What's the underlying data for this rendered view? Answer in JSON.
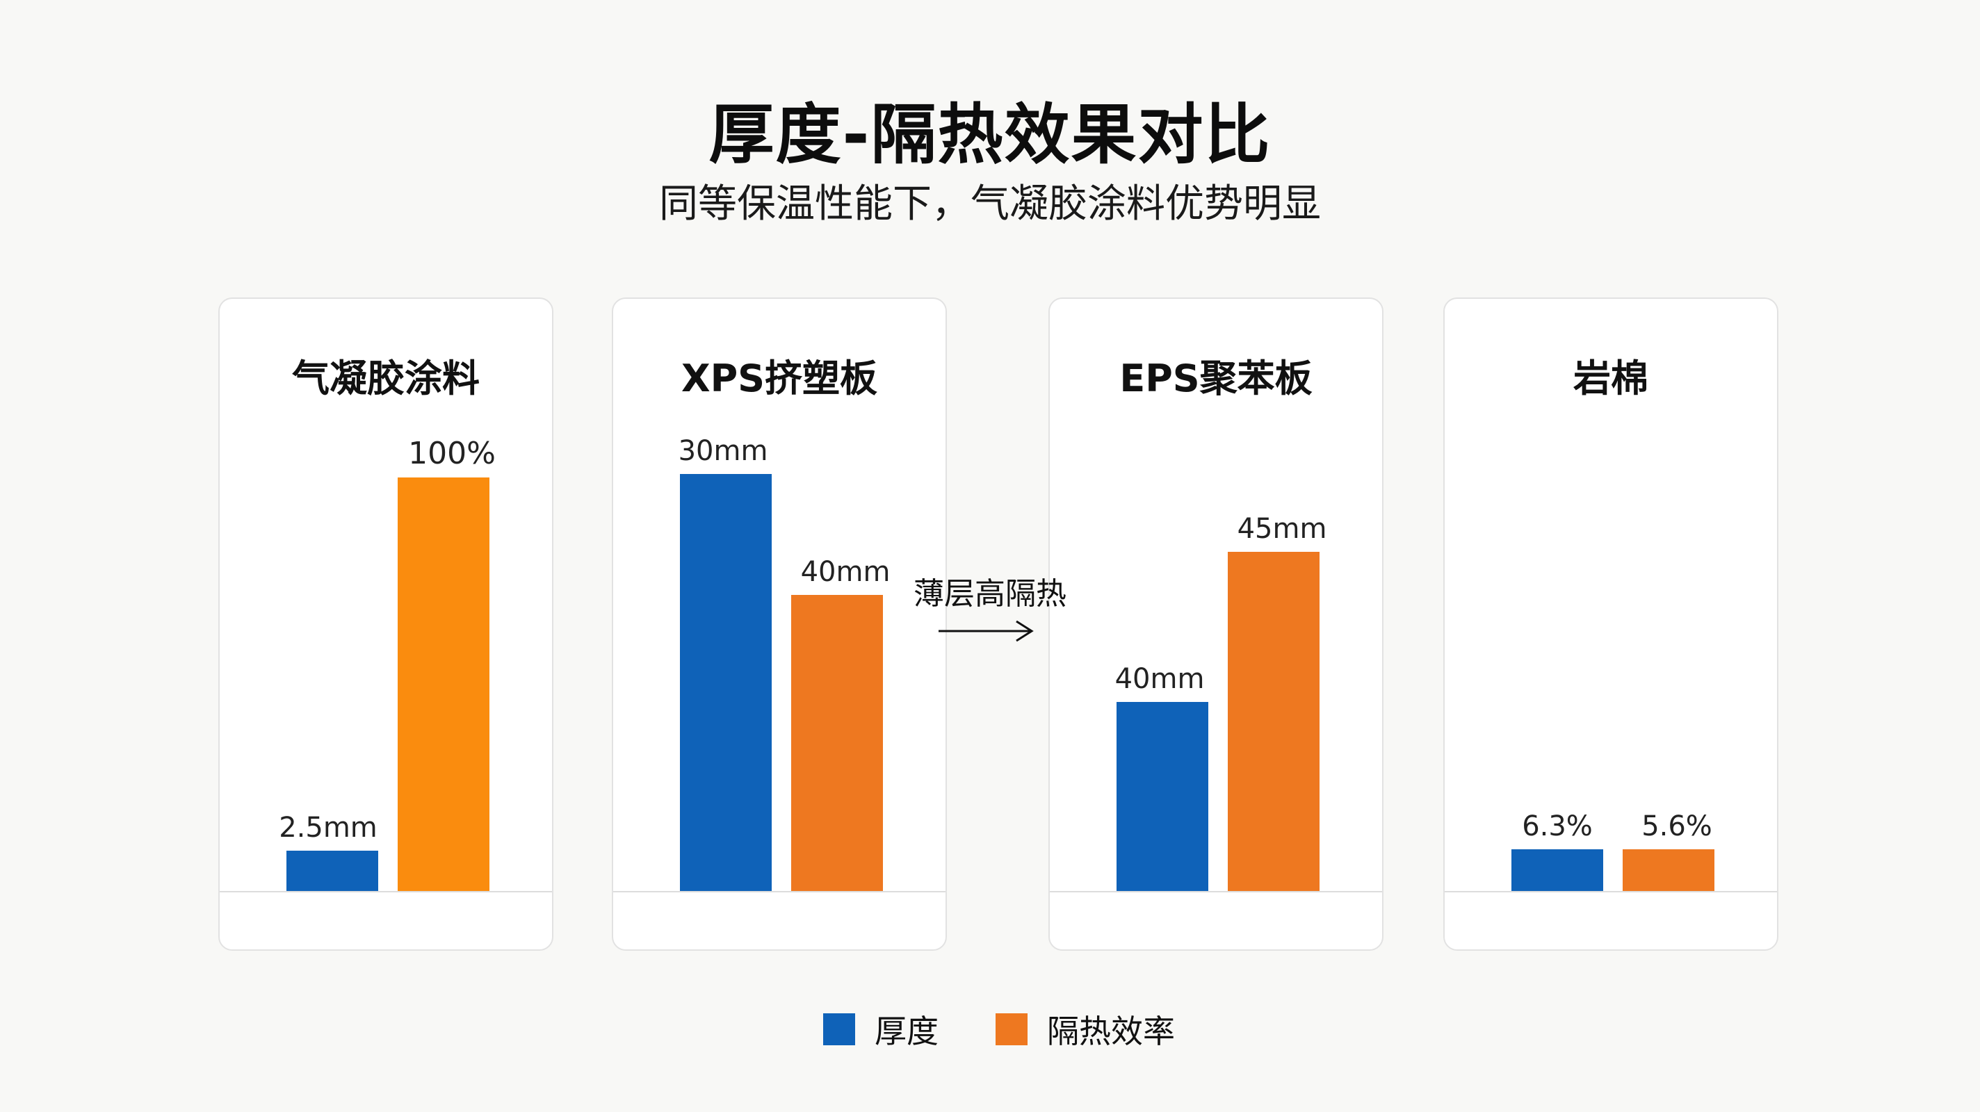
{
  "title": "厚度-隔热效果对比",
  "subtitle": "同等保温性能下，气凝胶涂料优势明显",
  "annotation": "薄层高隔热",
  "colors": {
    "thickness": "#0f62b8",
    "insulation": "#ee7820",
    "insulation_highlight": "#fa8c0e"
  },
  "legend": [
    {
      "label": "厚度",
      "color": "#0f62b8"
    },
    {
      "label": "隔热效率",
      "color": "#ee7820"
    }
  ],
  "chart_data": {
    "type": "bar",
    "title": "厚度-隔热效果对比",
    "subtitle": "同等保温性能下，气凝胶涂料优势明显",
    "series_names": [
      "厚度",
      "隔热效率"
    ],
    "panels": [
      {
        "name": "气凝胶涂料",
        "bars": [
          {
            "series": "厚度",
            "value": 2.5,
            "unit": "mm",
            "label": "2.5mm"
          },
          {
            "series": "隔热效率",
            "value": 100,
            "unit": "%",
            "label": "100%"
          }
        ]
      },
      {
        "name": "XPS挤塑板",
        "bars": [
          {
            "series": "厚度",
            "value": 30,
            "unit": "mm",
            "label": "30mm"
          },
          {
            "series": "隔热效率",
            "value": 40,
            "unit": "mm",
            "label": "40mm"
          }
        ]
      },
      {
        "name": "EPS聚苯板",
        "bars": [
          {
            "series": "厚度",
            "value": 40,
            "unit": "mm",
            "label": "40mm"
          },
          {
            "series": "隔热效率",
            "value": 45,
            "unit": "mm",
            "label": "45mm"
          }
        ]
      },
      {
        "name": "岩棉",
        "bars": [
          {
            "series": "厚度",
            "value": 6.3,
            "unit": "%",
            "label": "6.3%"
          },
          {
            "series": "隔热效率",
            "value": 5.6,
            "unit": "%",
            "label": "5.6%"
          }
        ]
      }
    ]
  }
}
